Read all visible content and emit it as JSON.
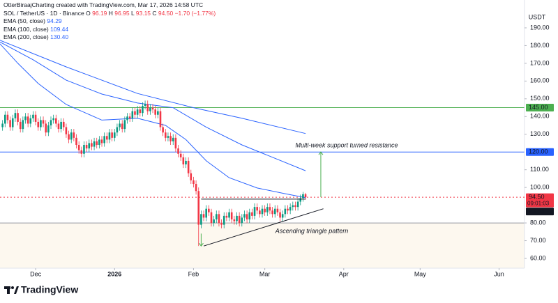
{
  "header": {
    "credit": "OtterBiraajCharting created with TradingView.com, Mar 17, 2026 14:58 UTC",
    "symbol": "SOL / TetherUS · 1D · Binance",
    "ohlc": [
      {
        "key": "O",
        "value": "96.19"
      },
      {
        "key": "H",
        "value": "96.95"
      },
      {
        "key": "L",
        "value": "93.15"
      },
      {
        "key": "C",
        "value": "94.50"
      }
    ],
    "change": "−1.70 (−1.77%)"
  },
  "chart_data": {
    "type": "candlestick",
    "currency": "USDT",
    "up_color": "#089981",
    "down_color": "#f23645",
    "grid": false,
    "x": [
      -13,
      -12,
      -11,
      -10,
      -9,
      -8,
      -7,
      -6,
      -5,
      -4,
      -3,
      -2,
      -1,
      0,
      1,
      2,
      3,
      4,
      5,
      6,
      7,
      8,
      9,
      10,
      11,
      12,
      13,
      14,
      15,
      16,
      17,
      18,
      19,
      20,
      21,
      22,
      23,
      24,
      25,
      26,
      27,
      28,
      29,
      30,
      31,
      32,
      33,
      34,
      35,
      36,
      37,
      38,
      39,
      40,
      41,
      42,
      43,
      44,
      45,
      46,
      47,
      48,
      49,
      50,
      51,
      52,
      53,
      54,
      55,
      56,
      57,
      58,
      59,
      60,
      61,
      62,
      63,
      64,
      65,
      66,
      67,
      68,
      69,
      70,
      71,
      72,
      73,
      74,
      75,
      76,
      77,
      78,
      79,
      80,
      81,
      82,
      83,
      84,
      85,
      86,
      87,
      88,
      89,
      90,
      91,
      92,
      93,
      94,
      95,
      96,
      97,
      98,
      99,
      100,
      101,
      102,
      103,
      104,
      105,
      106
    ],
    "open": [
      134,
      136,
      141,
      138,
      134,
      139,
      142,
      137,
      133,
      138,
      140,
      136,
      139,
      141,
      137,
      134,
      138,
      136,
      131,
      135,
      138,
      139,
      136,
      133,
      137,
      134,
      130,
      127,
      131,
      128,
      124,
      121,
      119,
      124,
      122,
      125,
      123,
      126,
      124,
      127,
      125,
      129,
      127,
      131,
      128,
      131,
      134,
      136,
      133,
      138,
      140,
      139,
      143,
      141,
      144,
      142,
      146,
      147,
      143,
      145,
      144,
      141,
      143,
      134,
      131,
      128,
      129,
      126,
      128,
      122,
      119,
      117,
      113,
      115,
      108,
      104,
      102,
      98,
      79,
      85,
      83,
      88,
      86,
      80,
      82,
      85,
      80,
      79,
      84,
      83,
      86,
      82,
      81,
      84,
      80,
      83,
      85,
      82,
      86,
      84,
      89,
      87,
      85,
      88,
      86,
      89,
      87,
      85,
      88,
      86,
      83,
      85,
      88,
      87,
      89,
      90,
      89,
      92,
      94,
      96.19
    ],
    "high": [
      138,
      143,
      143,
      140,
      141,
      144,
      144,
      139,
      140,
      142,
      142,
      141,
      143,
      143,
      139,
      140,
      140,
      138,
      137,
      140,
      141,
      141,
      138,
      139,
      139,
      136,
      132,
      133,
      133,
      130,
      126,
      123,
      126,
      126,
      127,
      127,
      128,
      128,
      129,
      129,
      131,
      131,
      133,
      133,
      133,
      136,
      138,
      138,
      140,
      142,
      142,
      145,
      145,
      146,
      146,
      148,
      149,
      149,
      147,
      147,
      146,
      145,
      145,
      136,
      133,
      131,
      131,
      130,
      130,
      124,
      121,
      119,
      117,
      117,
      110,
      106,
      104,
      100,
      87,
      87,
      90,
      90,
      88,
      84,
      87,
      87,
      82,
      86,
      86,
      88,
      88,
      84,
      86,
      86,
      85,
      87,
      87,
      88,
      88,
      91,
      91,
      89,
      90,
      90,
      91,
      91,
      89,
      90,
      90,
      88,
      87,
      90,
      90,
      91,
      92,
      92,
      94,
      96,
      97.5,
      96.95
    ],
    "low": [
      132,
      134,
      136,
      132,
      132,
      137,
      135,
      131,
      131,
      136,
      134,
      134,
      137,
      135,
      132,
      132,
      134,
      129,
      129,
      133,
      136,
      134,
      131,
      131,
      132,
      128,
      125,
      125,
      126,
      122,
      119,
      117,
      117,
      120,
      120,
      121,
      121,
      122,
      122,
      123,
      123,
      125,
      125,
      126,
      126,
      129,
      132,
      131,
      131,
      136,
      137,
      137,
      139,
      139,
      140,
      140,
      144,
      141,
      141,
      142,
      139,
      139,
      132,
      129,
      126,
      126,
      124,
      124,
      120,
      117,
      115,
      111,
      111,
      106,
      102,
      100,
      96,
      67,
      77,
      81,
      81,
      84,
      78,
      78,
      80,
      78,
      77,
      77,
      81,
      81,
      80,
      79,
      79,
      78,
      78,
      81,
      80,
      80,
      82,
      82,
      85,
      83,
      83,
      84,
      84,
      85,
      83,
      83,
      84,
      81,
      81,
      83,
      85,
      85,
      87,
      87,
      87,
      90,
      92,
      93.15
    ],
    "close": [
      136,
      141,
      138,
      134,
      139,
      142,
      137,
      133,
      138,
      140,
      136,
      139,
      141,
      137,
      134,
      138,
      136,
      131,
      135,
      138,
      139,
      136,
      133,
      137,
      134,
      130,
      127,
      131,
      128,
      124,
      121,
      119,
      124,
      122,
      125,
      123,
      126,
      124,
      127,
      125,
      129,
      127,
      131,
      128,
      131,
      134,
      136,
      133,
      138,
      140,
      139,
      143,
      141,
      144,
      142,
      146,
      147,
      143,
      145,
      144,
      141,
      143,
      134,
      131,
      128,
      129,
      126,
      128,
      122,
      119,
      117,
      113,
      115,
      108,
      104,
      102,
      98,
      79,
      85,
      83,
      88,
      86,
      80,
      82,
      85,
      80,
      79,
      84,
      83,
      86,
      82,
      81,
      84,
      80,
      83,
      85,
      82,
      86,
      84,
      89,
      87,
      85,
      88,
      86,
      89,
      87,
      85,
      88,
      86,
      83,
      85,
      88,
      87,
      89,
      90,
      89,
      92,
      94,
      96.19,
      94.5
    ],
    "xlim": [
      -14,
      192
    ],
    "xticks": [
      {
        "value": 0,
        "label": "Dec"
      },
      {
        "value": 31,
        "label": "2026"
      },
      {
        "value": 62,
        "label": "Feb"
      },
      {
        "value": 90,
        "label": "Mar"
      },
      {
        "value": 121,
        "label": "Apr"
      },
      {
        "value": 151,
        "label": "May"
      },
      {
        "value": 182,
        "label": "Jun"
      }
    ],
    "ylim": [
      54.5,
      205.7
    ],
    "yticks": [
      {
        "value": 60,
        "label": "60.00"
      },
      {
        "value": 70,
        "label": "70.00"
      },
      {
        "value": 80,
        "label": "80.00"
      },
      {
        "value": 100,
        "label": "100.00"
      },
      {
        "value": 110,
        "label": "110.00"
      },
      {
        "value": 130,
        "label": "130.00"
      },
      {
        "value": 140,
        "label": "140.00"
      },
      {
        "value": 150,
        "label": "150.00"
      },
      {
        "value": 160,
        "label": "160.00"
      },
      {
        "value": 170,
        "label": "170.00"
      },
      {
        "value": 180,
        "label": "180.00"
      },
      {
        "value": 190,
        "label": "190.00"
      }
    ],
    "series": [
      {
        "name": "EMA (50, close)",
        "color": "#2962ff",
        "last_label": "94.29",
        "x": [
          -14,
          -7,
          1,
          12,
          26,
          40,
          51,
          59,
          67,
          76,
          87,
          98,
          106
        ],
        "values": [
          181,
          170,
          158.6,
          146.8,
          138,
          139,
          135,
          127,
          115,
          105.5,
          99.7,
          96.5,
          94.29
        ]
      },
      {
        "name": "EMA (100, close)",
        "color": "#2962ff",
        "last_label": "109.44",
        "x": [
          -14,
          -1,
          12,
          26,
          40,
          54,
          67,
          81,
          106
        ],
        "values": [
          182,
          172,
          160.5,
          152.7,
          147.6,
          145,
          134,
          124,
          109.44
        ]
      },
      {
        "name": "EMA (200, close)",
        "color": "#2962ff",
        "last_label": "130.40",
        "x": [
          -14,
          12,
          40,
          62,
          81,
          106
        ],
        "values": [
          183,
          168,
          153,
          145,
          139,
          130.4
        ]
      }
    ],
    "levels": [
      {
        "value": 145,
        "label": "145.00",
        "color": "#4caf50"
      },
      {
        "value": 120,
        "label": "120.00",
        "color": "#2962ff"
      },
      {
        "value": 80,
        "color": "#9598a1"
      }
    ],
    "price_line": {
      "value": 94.5,
      "label": "94.50",
      "countdown": "09:01:03",
      "color": "#f23645"
    },
    "resistance": {
      "x": [
        65,
        106
      ],
      "value": 93.43,
      "label": "93.43"
    },
    "support": {
      "x": [
        66,
        113
      ],
      "y": [
        67,
        88
      ]
    },
    "arrows": [
      {
        "x": 112,
        "from": 94.5,
        "to": 120
      },
      {
        "x": 65,
        "from": 74,
        "to": 67
      }
    ],
    "annotations": [
      "Multi-week support turned resistance",
      "Ascending triangle pattern"
    ]
  },
  "footer": {
    "brand": "TradingView"
  }
}
